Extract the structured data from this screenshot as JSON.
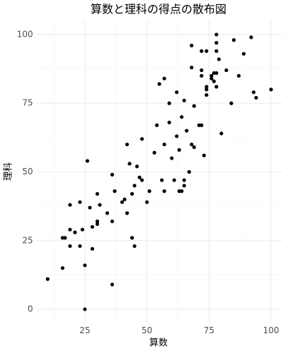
{
  "chart_data": {
    "type": "scatter",
    "title": "算数と理科の得点の散布図",
    "x_label": "算数",
    "y_label": "理科",
    "x": [
      10,
      16,
      16,
      17,
      19,
      19,
      19,
      21,
      23,
      23,
      24,
      25,
      25,
      26,
      27,
      28,
      28,
      30,
      30,
      31,
      30,
      34,
      36,
      36,
      36,
      37,
      40,
      41,
      42,
      42,
      44,
      43,
      44,
      45,
      45,
      46,
      47,
      48,
      48,
      50,
      51,
      53,
      54,
      55,
      57,
      56,
      57,
      57,
      59,
      59,
      60,
      61,
      62,
      62,
      63,
      63,
      64,
      64,
      65,
      65,
      65,
      66,
      67,
      68,
      68,
      68,
      69,
      69,
      71,
      72,
      72,
      72,
      72,
      74,
      73,
      74,
      74,
      74,
      76,
      76,
      77,
      77,
      78,
      78,
      78,
      78,
      78,
      79,
      80,
      82,
      84,
      85,
      87,
      89,
      92,
      93,
      94,
      100
    ],
    "y": [
      11,
      15,
      26,
      26,
      38,
      29,
      23,
      28,
      39,
      23,
      29,
      16,
      0,
      54,
      37,
      22,
      30,
      42,
      31,
      38,
      32,
      35,
      49,
      32,
      9,
      43,
      39,
      40,
      60,
      35,
      42,
      53,
      26,
      23,
      45,
      52,
      48,
      47,
      62,
      39,
      43,
      57,
      67,
      82,
      84,
      47,
      43,
      60,
      75,
      68,
      55,
      47,
      79,
      63,
      58,
      43,
      43,
      70,
      76,
      47,
      45,
      65,
      50,
      96,
      88,
      60,
      74,
      59,
      67,
      67,
      94,
      87,
      85,
      94,
      56,
      81,
      80,
      78,
      85,
      84,
      86,
      83,
      81,
      86,
      100,
      97,
      94,
      91,
      64,
      87,
      75,
      98,
      85,
      93,
      99,
      79,
      77,
      80
    ],
    "color": "#000000",
    "xlim": [
      5.5,
      104.5
    ],
    "ylim": [
      -5,
      105
    ],
    "xticks": [
      25,
      50,
      75,
      100
    ],
    "yticks": [
      0,
      25,
      50,
      75,
      100
    ],
    "x_minor_grid": [
      12.5,
      37.5,
      62.5,
      87.5
    ],
    "y_minor_grid": [
      12.5,
      37.5,
      62.5,
      87.5
    ],
    "grid": true
  }
}
